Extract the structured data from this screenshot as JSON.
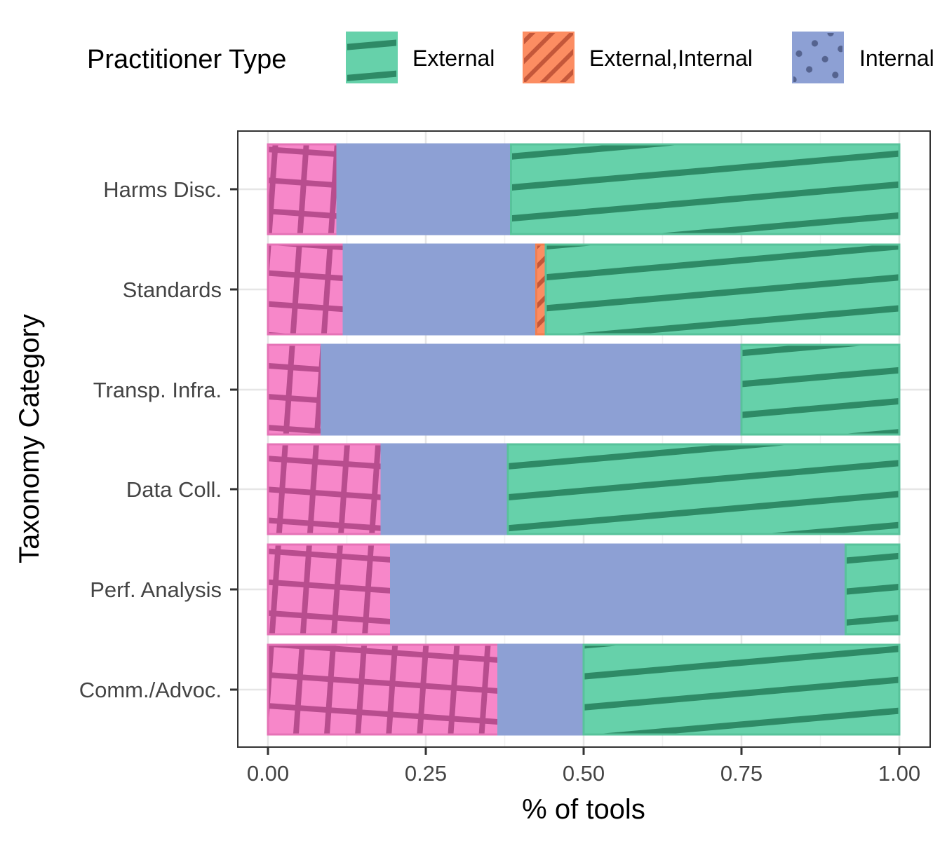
{
  "chart_data": {
    "type": "bar",
    "orientation": "horizontal",
    "stacked": "percent",
    "xlabel": "% of tools",
    "ylabel": "Taxonomy Category",
    "xlim": [
      0,
      1
    ],
    "xticks": [
      "0.00",
      "0.25",
      "0.50",
      "0.75",
      "1.00"
    ],
    "x_tick_values": [
      0,
      0.25,
      0.5,
      0.75,
      1.0
    ],
    "grid": true,
    "legend": {
      "title": "Practitioner Type",
      "position": "top",
      "entries": [
        "External",
        "External,Internal",
        "Internal"
      ]
    },
    "categories": [
      "Harms Disc.",
      "Standards",
      "Transp. Infra.",
      "Data Coll.",
      "Perf. Analysis",
      "Comm./Advoc."
    ],
    "series": [
      {
        "values": [
          0.11,
          0.12,
          0.085,
          0.18,
          0.195,
          0.365
        ],
        "color": "#f787c9",
        "pattern": "crosshatch"
      },
      {
        "name": "Internal",
        "values": [
          0.275,
          0.305,
          0.665,
          0.2,
          0.72,
          0.135
        ],
        "color": "#8da0d4",
        "pattern": "dots"
      },
      {
        "name": "External,Internal",
        "values": [
          0,
          0.015,
          0,
          0,
          0,
          0
        ],
        "color": "#fc8d62",
        "pattern": "stripes"
      },
      {
        "name": "External",
        "values": [
          0.615,
          0.56,
          0.25,
          0.62,
          0.085,
          0.5
        ],
        "color": "#66d1aa",
        "pattern": "stripes"
      }
    ]
  }
}
